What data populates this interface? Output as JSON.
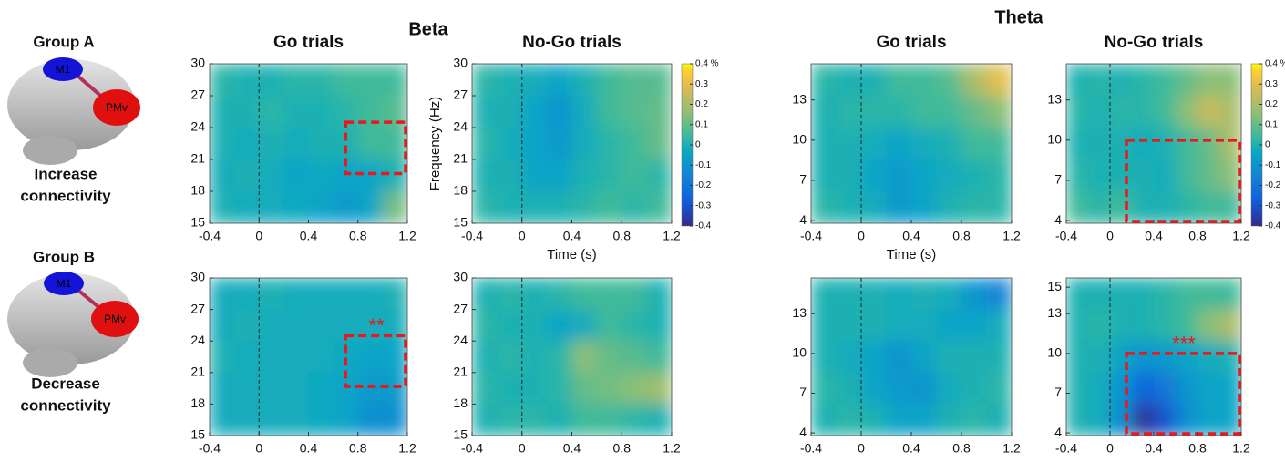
{
  "figure": {
    "band_titles": [
      "Beta",
      "Theta"
    ],
    "brain_labels": [
      "M1",
      "PMv"
    ],
    "groups": [
      {
        "label": "Group A",
        "caption": [
          "Increase",
          "connectivity"
        ]
      },
      {
        "label": "Group B",
        "caption": [
          "Decrease",
          "connectivity"
        ]
      }
    ]
  },
  "chart_data": [
    {
      "type": "heatmap",
      "title": "Go trials",
      "colormap": "parula",
      "xlim": [
        -0.4,
        1.2
      ],
      "ylim": [
        15,
        30
      ],
      "xticks": [
        -0.4,
        0,
        0.4,
        0.8,
        1.2
      ],
      "yticks": [
        15,
        18,
        21,
        24,
        27,
        30
      ],
      "vline": 0,
      "highlight": {
        "x": [
          0.7,
          1.2
        ],
        "y": [
          19.5,
          24.5
        ]
      },
      "z": [
        [
          0.02,
          0.0,
          0.0,
          0.02,
          0.02,
          0.05,
          0.05,
          0.05
        ],
        [
          0.0,
          0.0,
          0.02,
          0.0,
          0.0,
          0.02,
          0.05,
          0.08
        ],
        [
          0.0,
          -0.02,
          0.0,
          -0.02,
          0.0,
          0.0,
          0.05,
          0.05
        ],
        [
          -0.02,
          0.0,
          -0.02,
          -0.05,
          -0.03,
          -0.05,
          -0.05,
          0.0
        ],
        [
          0.0,
          -0.02,
          -0.02,
          -0.03,
          -0.05,
          -0.08,
          -0.05,
          0.12
        ]
      ]
    },
    {
      "type": "heatmap",
      "title": "No-Go trials",
      "colormap": "parula",
      "xlabel": "Time (s)",
      "ylabel": "Frequency (Hz)",
      "xlim": [
        -0.4,
        1.2
      ],
      "ylim": [
        15,
        30
      ],
      "xticks": [
        -0.4,
        0,
        0.4,
        0.8,
        1.2
      ],
      "yticks": [
        15,
        18,
        21,
        24,
        27,
        30
      ],
      "vline": 0,
      "colorbar": {
        "lim": [
          -0.4,
          0.4
        ],
        "ticks": [
          {
            "value": 0.4,
            "label": "0.4 %"
          },
          0.3,
          0.2,
          0.1,
          0,
          -0.1,
          -0.2,
          -0.3,
          -0.4
        ]
      },
      "z": [
        [
          0.02,
          0.0,
          -0.02,
          -0.05,
          0.0,
          0.05,
          0.08,
          0.08
        ],
        [
          0.0,
          0.0,
          -0.05,
          -0.1,
          -0.02,
          0.05,
          0.08,
          0.1
        ],
        [
          0.02,
          -0.02,
          -0.05,
          -0.08,
          -0.02,
          0.02,
          0.05,
          0.1
        ],
        [
          0.0,
          0.0,
          -0.05,
          -0.05,
          0.0,
          0.02,
          0.05,
          0.02
        ],
        [
          0.02,
          0.0,
          0.0,
          0.0,
          0.02,
          0.05,
          0.02,
          0.05
        ]
      ]
    },
    {
      "type": "heatmap",
      "title": "Go trials",
      "colormap": "parula",
      "xlabel": "Time (s)",
      "xlim": [
        -0.4,
        1.2
      ],
      "ylim": [
        3.8,
        15.7
      ],
      "xticks": [
        -0.4,
        0,
        0.4,
        0.8,
        1.2
      ],
      "yticks": [
        4,
        7,
        10,
        13
      ],
      "vline": 0,
      "z": [
        [
          0.02,
          0.0,
          0.0,
          0.05,
          0.05,
          0.08,
          0.2,
          0.3
        ],
        [
          0.0,
          0.02,
          0.02,
          0.02,
          0.05,
          0.05,
          0.1,
          0.15
        ],
        [
          0.0,
          0.0,
          -0.02,
          -0.05,
          -0.02,
          0.0,
          0.05,
          0.05
        ],
        [
          0.0,
          0.0,
          -0.05,
          -0.08,
          -0.05,
          -0.02,
          0.0,
          0.02
        ],
        [
          0.02,
          0.0,
          -0.02,
          -0.08,
          -0.05,
          0.0,
          0.02,
          0.02
        ]
      ]
    },
    {
      "type": "heatmap",
      "title": "No-Go trials",
      "colormap": "parula",
      "xlim": [
        -0.4,
        1.2
      ],
      "ylim": [
        3.8,
        15.7
      ],
      "xticks": [
        -0.4,
        0,
        0.4,
        0.8,
        1.2
      ],
      "yticks": [
        4,
        7,
        10,
        13
      ],
      "vline": 0,
      "highlight": {
        "x": [
          0.15,
          1.2
        ],
        "y": [
          3.8,
          10
        ]
      },
      "colorbar": {
        "lim": [
          -0.4,
          0.4
        ],
        "ticks": [
          {
            "value": 0.4,
            "label": "0.4 %"
          },
          0.3,
          0.2,
          0.1,
          0,
          -0.1,
          -0.2,
          -0.3,
          -0.4
        ]
      },
      "z": [
        [
          0.0,
          0.02,
          0.0,
          0.02,
          0.05,
          0.1,
          0.15,
          0.15
        ],
        [
          0.02,
          0.0,
          0.02,
          0.02,
          0.05,
          0.15,
          0.25,
          0.2
        ],
        [
          0.0,
          0.0,
          0.0,
          -0.02,
          0.0,
          0.05,
          0.1,
          0.2
        ],
        [
          0.02,
          0.0,
          0.0,
          0.0,
          -0.02,
          0.05,
          0.1,
          0.15
        ],
        [
          0.05,
          0.02,
          0.05,
          0.0,
          0.0,
          0.02,
          0.05,
          0.05
        ]
      ]
    },
    {
      "type": "heatmap",
      "colormap": "parula",
      "xlim": [
        -0.4,
        1.2
      ],
      "ylim": [
        15,
        30
      ],
      "xticks": [
        -0.4,
        0,
        0.4,
        0.8,
        1.2
      ],
      "yticks": [
        15,
        18,
        21,
        24,
        27,
        30
      ],
      "vline": 0,
      "highlight": {
        "x": [
          0.7,
          1.2
        ],
        "y": [
          19.5,
          24.5
        ]
      },
      "annotation": "**",
      "z": [
        [
          -0.02,
          -0.02,
          0.0,
          -0.02,
          -0.02,
          -0.02,
          -0.02,
          0.0
        ],
        [
          -0.02,
          0.0,
          -0.02,
          -0.02,
          -0.02,
          -0.02,
          -0.02,
          -0.02
        ],
        [
          0.0,
          -0.02,
          -0.02,
          -0.02,
          -0.02,
          -0.03,
          -0.05,
          -0.05
        ],
        [
          -0.02,
          -0.02,
          -0.02,
          -0.02,
          -0.03,
          -0.05,
          -0.08,
          -0.08
        ],
        [
          -0.02,
          -0.02,
          -0.02,
          -0.02,
          -0.03,
          -0.05,
          -0.12,
          -0.12
        ]
      ]
    },
    {
      "type": "heatmap",
      "colormap": "parula",
      "xlim": [
        -0.4,
        1.2
      ],
      "ylim": [
        15,
        30
      ],
      "xticks": [
        -0.4,
        0,
        0.4,
        0.8,
        1.2
      ],
      "yticks": [
        15,
        18,
        21,
        24,
        27,
        30
      ],
      "vline": 0,
      "z": [
        [
          0.0,
          0.02,
          0.0,
          0.02,
          0.05,
          0.05,
          0.05,
          0.0
        ],
        [
          0.02,
          0.0,
          0.0,
          -0.05,
          -0.02,
          0.05,
          0.02,
          0.0
        ],
        [
          0.0,
          0.02,
          0.0,
          0.02,
          0.15,
          0.1,
          0.08,
          0.05
        ],
        [
          0.02,
          0.0,
          0.0,
          0.02,
          0.1,
          0.12,
          0.15,
          0.18
        ],
        [
          0.0,
          0.02,
          0.02,
          0.0,
          0.05,
          0.05,
          0.02,
          0.0
        ]
      ]
    },
    {
      "type": "heatmap",
      "colormap": "parula",
      "xlim": [
        -0.4,
        1.2
      ],
      "ylim": [
        3.8,
        15.7
      ],
      "xticks": [
        -0.4,
        0,
        0.4,
        0.8,
        1.2
      ],
      "yticks": [
        4,
        7,
        10,
        13
      ],
      "vline": 0,
      "z": [
        [
          0.0,
          0.0,
          0.0,
          -0.02,
          0.0,
          -0.02,
          -0.1,
          -0.15
        ],
        [
          0.0,
          0.0,
          0.0,
          -0.02,
          -0.02,
          -0.05,
          -0.05,
          -0.02
        ],
        [
          0.0,
          -0.02,
          -0.05,
          -0.1,
          -0.05,
          0.0,
          0.0,
          0.0
        ],
        [
          0.02,
          0.0,
          -0.05,
          -0.08,
          -0.1,
          -0.02,
          0.0,
          0.02
        ],
        [
          0.0,
          0.02,
          0.0,
          -0.05,
          -0.05,
          0.0,
          0.02,
          0.0
        ]
      ]
    },
    {
      "type": "heatmap",
      "colormap": "parula",
      "xlim": [
        -0.4,
        1.2
      ],
      "ylim": [
        3.8,
        15.7
      ],
      "xticks": [
        -0.4,
        0,
        0.4,
        0.8,
        1.2
      ],
      "yticks": [
        4,
        7,
        10,
        13,
        15
      ],
      "vline": 0,
      "highlight": {
        "x": [
          0.15,
          1.2
        ],
        "y": [
          3.8,
          10
        ]
      },
      "annotation": "***",
      "z": [
        [
          0.0,
          0.0,
          0.0,
          0.0,
          0.02,
          0.05,
          0.05,
          0.05
        ],
        [
          0.0,
          0.02,
          0.0,
          0.0,
          0.02,
          0.05,
          0.15,
          0.2
        ],
        [
          0.0,
          0.0,
          -0.05,
          -0.1,
          -0.08,
          -0.05,
          -0.02,
          0.0
        ],
        [
          0.0,
          -0.02,
          -0.1,
          -0.25,
          -0.2,
          -0.1,
          -0.05,
          -0.05
        ],
        [
          0.0,
          -0.02,
          -0.12,
          -0.38,
          -0.3,
          -0.12,
          -0.05,
          -0.05
        ]
      ]
    }
  ]
}
